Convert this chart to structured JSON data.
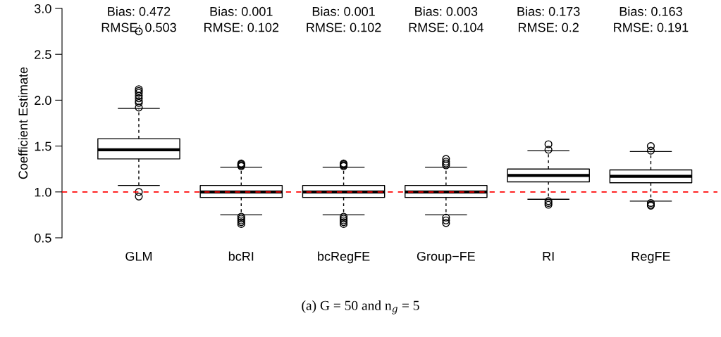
{
  "chart_data": {
    "type": "box",
    "ylabel": "Coefficient Estimate",
    "categories": [
      "GLM",
      "bcRI",
      "bcRegFE",
      "Group−FE",
      "RI",
      "RegFE"
    ],
    "boxes": [
      {
        "low": 1.07,
        "q1": 1.36,
        "median": 1.46,
        "q3": 1.58,
        "high": 1.91,
        "outliers": [
          0.95,
          1.0,
          1.92,
          1.97,
          1.99,
          2.02,
          2.05,
          2.08,
          2.1,
          2.12,
          2.75
        ]
      },
      {
        "low": 0.75,
        "q1": 0.94,
        "median": 1.0,
        "q3": 1.07,
        "high": 1.27,
        "outliers": [
          0.65,
          0.67,
          0.69,
          0.71,
          0.73,
          1.28,
          1.29,
          1.3,
          1.31
        ]
      },
      {
        "low": 0.75,
        "q1": 0.94,
        "median": 1.0,
        "q3": 1.07,
        "high": 1.27,
        "outliers": [
          0.65,
          0.67,
          0.69,
          0.71,
          0.73,
          1.28,
          1.29,
          1.3,
          1.31
        ]
      },
      {
        "low": 0.75,
        "q1": 0.94,
        "median": 1.0,
        "q3": 1.07,
        "high": 1.27,
        "outliers": [
          0.66,
          0.69,
          0.72,
          1.29,
          1.31,
          1.33,
          1.36
        ]
      },
      {
        "low": 0.92,
        "q1": 1.11,
        "median": 1.18,
        "q3": 1.25,
        "high": 1.45,
        "outliers": [
          0.86,
          0.88,
          0.9,
          1.46,
          1.52
        ]
      },
      {
        "low": 0.9,
        "q1": 1.1,
        "median": 1.17,
        "q3": 1.24,
        "high": 1.44,
        "outliers": [
          0.85,
          0.86,
          0.88,
          1.45,
          1.5
        ]
      }
    ],
    "ylim": [
      0.5,
      3.0
    ],
    "yticks": [
      {
        "value": 0.5,
        "label": "0.5"
      },
      {
        "value": 1.0,
        "label": "1.0"
      },
      {
        "value": 1.5,
        "label": "1.5"
      },
      {
        "value": 2.0,
        "label": "2.0"
      },
      {
        "value": 2.5,
        "label": "2.5"
      },
      {
        "value": 3.0,
        "label": "3.0"
      }
    ],
    "ref_lines": [
      {
        "axis": "y",
        "value": 1.0,
        "color": "#ff0000",
        "line_style": "dashed"
      }
    ],
    "grid": false,
    "annotations": [
      "Bias: 0.472\nRMSE: 0.503",
      "Bias: 0.001\nRMSE: 0.102",
      "Bias: 0.001\nRMSE: 0.102",
      "Bias: 0.003\nRMSE: 0.104",
      "Bias: 0.173\nRMSE: 0.2",
      "Bias: 0.163\nRMSE: 0.191",
      "(a) G = 50 and n$_{g}$ = 5"
    ]
  }
}
